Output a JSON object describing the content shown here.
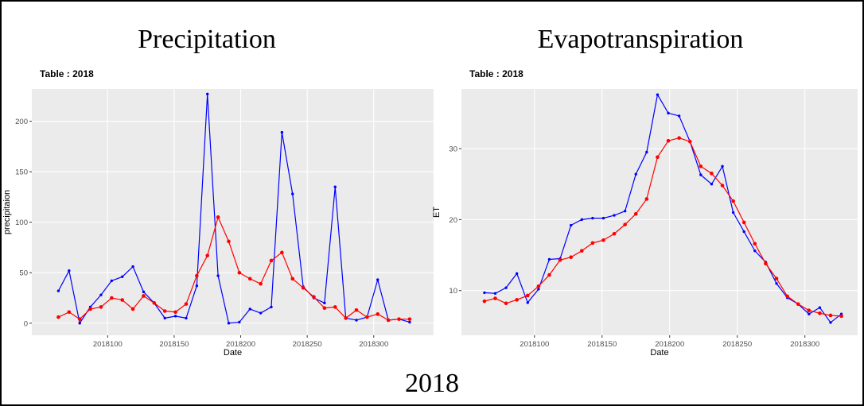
{
  "caption": "2018",
  "chart_data": [
    {
      "type": "line",
      "title": "Precipitation",
      "subtitle": "Table : 2018",
      "xlabel": "Date",
      "ylabel": "precipitaion",
      "x": [
        2018063,
        2018071,
        2018079,
        2018087,
        2018095,
        2018103,
        2018111,
        2018119,
        2018127,
        2018135,
        2018143,
        2018151,
        2018159,
        2018167,
        2018175,
        2018183,
        2018191,
        2018199,
        2018207,
        2018215,
        2018223,
        2018231,
        2018239,
        2018247,
        2018255,
        2018263,
        2018271,
        2018279,
        2018287,
        2018295,
        2018303,
        2018311,
        2018319,
        2018327
      ],
      "series": [
        {
          "color": "#0000ff",
          "values": [
            32,
            52,
            0,
            16,
            28,
            42,
            46,
            56,
            31,
            20,
            5,
            7,
            5,
            37,
            227,
            47,
            0,
            1,
            14,
            10,
            16,
            189,
            128,
            36,
            25,
            20,
            135,
            5,
            3,
            6,
            43,
            3,
            4,
            1
          ]
        },
        {
          "color": "#ff0000",
          "values": [
            6,
            11,
            4,
            14,
            16,
            25,
            23,
            14,
            27,
            20,
            12,
            11,
            19,
            47,
            67,
            105,
            81,
            50,
            44,
            39,
            62,
            70,
            44,
            35,
            26,
            15,
            16,
            5,
            13,
            6,
            9,
            3,
            4,
            4
          ]
        }
      ],
      "xlim": [
        2018043,
        2018345
      ],
      "xticks": [
        2018100,
        2018150,
        2018200,
        2018250,
        2018300
      ],
      "ylim": [
        -12,
        232
      ],
      "yticks": [
        0,
        50,
        100,
        150,
        200
      ],
      "grid": true
    },
    {
      "type": "line",
      "title": "Evapotranspiration",
      "subtitle": "Table : 2018",
      "xlabel": "Date",
      "ylabel": "ET",
      "x": [
        2018063,
        2018071,
        2018079,
        2018087,
        2018095,
        2018103,
        2018111,
        2018119,
        2018127,
        2018135,
        2018143,
        2018151,
        2018159,
        2018167,
        2018175,
        2018183,
        2018191,
        2018199,
        2018207,
        2018215,
        2018223,
        2018231,
        2018239,
        2018247,
        2018255,
        2018263,
        2018271,
        2018279,
        2018287,
        2018295,
        2018303,
        2018311,
        2018319,
        2018327
      ],
      "series": [
        {
          "color": "#0000ff",
          "values": [
            9.7,
            9.6,
            10.4,
            12.4,
            8.3,
            10.2,
            14.4,
            14.5,
            19.2,
            20.0,
            20.2,
            20.2,
            20.6,
            21.2,
            26.4,
            29.5,
            37.6,
            35.0,
            34.6,
            31.0,
            26.3,
            25.0,
            27.5,
            21.0,
            18.3,
            15.6,
            14.0,
            11.0,
            9.0,
            8.1,
            6.7,
            7.6,
            5.5,
            6.7
          ]
        },
        {
          "color": "#ff0000",
          "values": [
            8.5,
            8.9,
            8.2,
            8.7,
            9.3,
            10.6,
            12.2,
            14.3,
            14.7,
            15.6,
            16.7,
            17.1,
            18.0,
            19.3,
            20.8,
            22.9,
            28.8,
            31.1,
            31.5,
            31.0,
            27.5,
            26.5,
            24.8,
            22.6,
            19.6,
            16.6,
            13.8,
            11.7,
            9.2,
            8.1,
            7.2,
            6.8,
            6.5,
            6.4
          ]
        }
      ],
      "xlim": [
        2018046,
        2018339
      ],
      "xticks": [
        2018100,
        2018150,
        2018200,
        2018250,
        2018300
      ],
      "ylim": [
        3.7,
        38.4
      ],
      "yticks": [
        10,
        20,
        30
      ],
      "grid": true
    }
  ]
}
